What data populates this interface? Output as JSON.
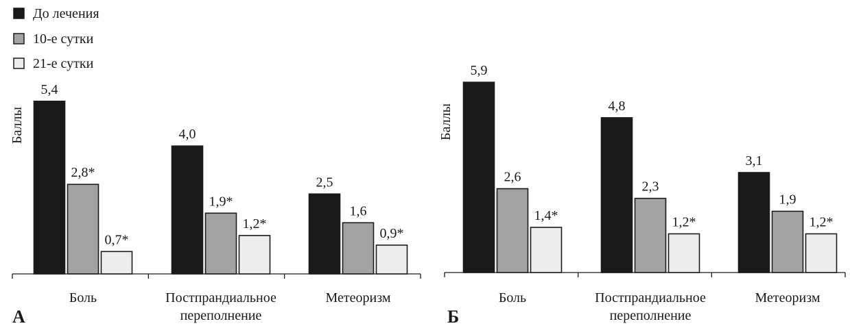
{
  "legend": {
    "items": [
      {
        "label": "До лечения",
        "color": "#1a1a1a"
      },
      {
        "label": "10-е сутки",
        "color": "#a3a3a3"
      },
      {
        "label": "21-е сутки",
        "color": "#ededed"
      }
    ]
  },
  "chart_data": [
    {
      "type": "bar",
      "panel_label": "А",
      "ylabel": "Баллы",
      "ylim": [
        0,
        6.6
      ],
      "grid": false,
      "legend_position": "top-left",
      "categories": [
        "Боль",
        "Постпрандиальное переполнение",
        "Метеоризм"
      ],
      "category_labels": [
        [
          "Боль"
        ],
        [
          "Постпрандиальное",
          "переполнение"
        ],
        [
          "Метеоризм"
        ]
      ],
      "series": [
        {
          "name": "До лечения",
          "values": [
            5.4,
            4.0,
            2.5
          ],
          "labels": [
            "5,4",
            "4,0",
            "2,5"
          ],
          "color": "#1a1a1a"
        },
        {
          "name": "10-е сутки",
          "values": [
            2.8,
            1.9,
            1.6
          ],
          "labels": [
            "2,8*",
            "1,9*",
            "1,6"
          ],
          "color": "#a3a3a3"
        },
        {
          "name": "21-е сутки",
          "values": [
            0.7,
            1.2,
            0.9
          ],
          "labels": [
            "0,7*",
            "1,2*",
            "0,9*"
          ],
          "color": "#ededed"
        }
      ]
    },
    {
      "type": "bar",
      "panel_label": "Б",
      "ylabel": "Баллы",
      "ylim": [
        0,
        6.6
      ],
      "grid": false,
      "categories": [
        "Боль",
        "Постпрандиальное переполнение",
        "Метеоризм"
      ],
      "category_labels": [
        [
          "Боль"
        ],
        [
          "Постпрандиальное",
          "переполнение"
        ],
        [
          "Метеоризм"
        ]
      ],
      "series": [
        {
          "name": "До лечения",
          "values": [
            5.9,
            4.8,
            3.1
          ],
          "labels": [
            "5,9",
            "4,8",
            "3,1"
          ],
          "color": "#1a1a1a"
        },
        {
          "name": "10-е сутки",
          "values": [
            2.6,
            2.3,
            1.9
          ],
          "labels": [
            "2,6",
            "2,3",
            "1,9"
          ],
          "color": "#a3a3a3"
        },
        {
          "name": "21-е сутки",
          "values": [
            1.4,
            1.2,
            1.2
          ],
          "labels": [
            "1,4*",
            "1,2*",
            "1,2*"
          ],
          "color": "#ededed"
        }
      ]
    }
  ]
}
